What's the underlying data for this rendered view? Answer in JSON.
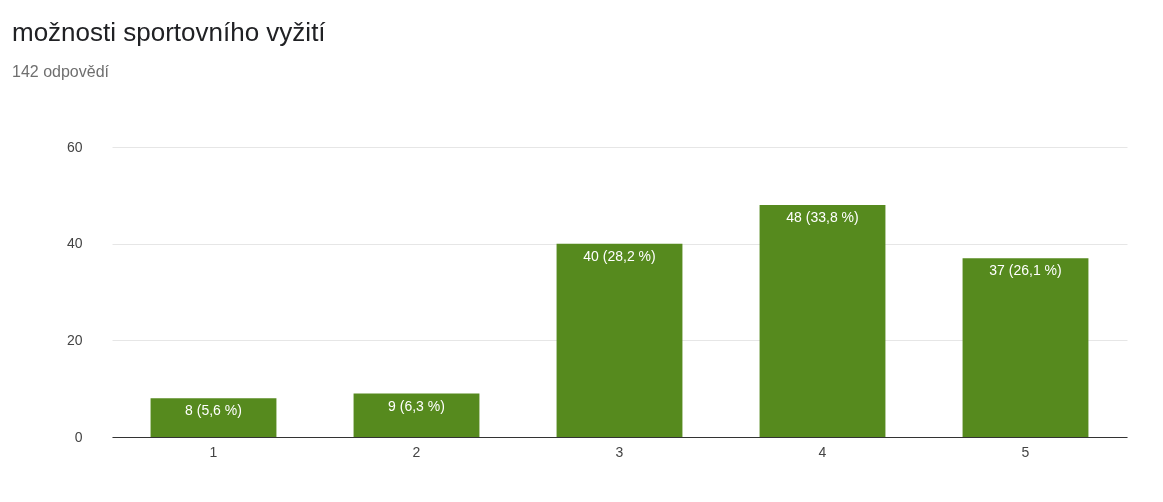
{
  "chart_data": {
    "type": "bar",
    "title": "možnosti sportovního vyžití",
    "subtitle": "142 odpovědí",
    "categories": [
      "1",
      "2",
      "3",
      "4",
      "5"
    ],
    "values": [
      8,
      9,
      40,
      48,
      37
    ],
    "value_labels": [
      "8 (5,6 %)",
      "9 (6,3 %)",
      "40 (28,2 %)",
      "48 (33,8 %)",
      "37 (26,1 %)"
    ],
    "color": "#568a1e",
    "ylim": [
      0,
      60
    ],
    "yticks": [
      0,
      20,
      40,
      60
    ],
    "grid": "y"
  }
}
